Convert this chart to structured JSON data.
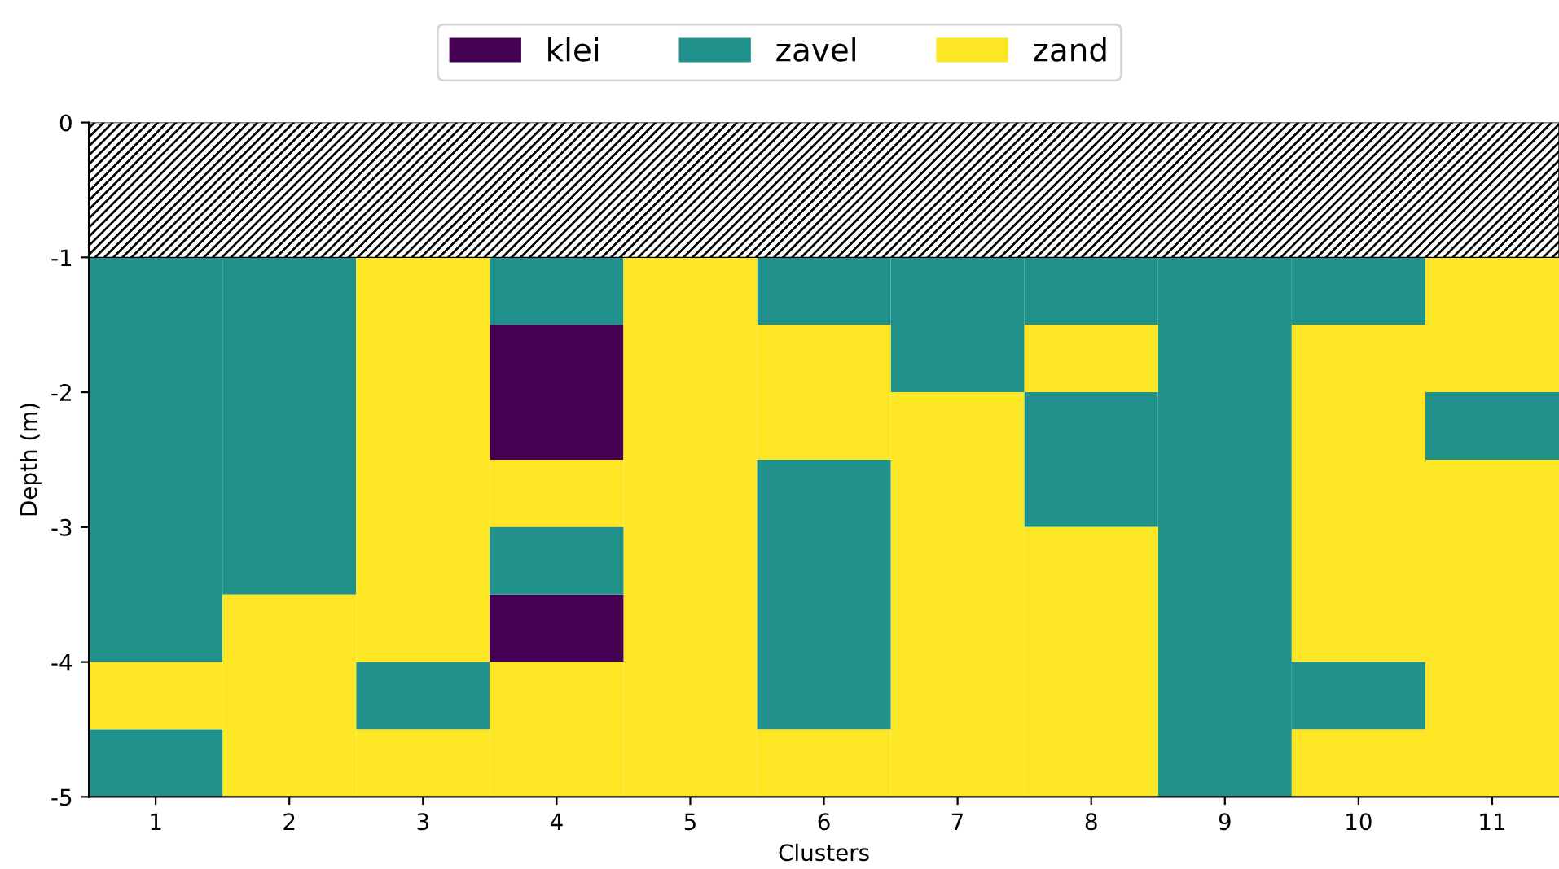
{
  "chart_data": {
    "type": "bar",
    "xlabel": "Clusters",
    "ylabel": "Depth (m)",
    "categories": [
      "1",
      "2",
      "3",
      "4",
      "5",
      "6",
      "7",
      "8",
      "9",
      "10",
      "11"
    ],
    "ylim": [
      -5,
      0
    ],
    "yticks": [
      0,
      -1,
      -2,
      -3,
      -4,
      -5
    ],
    "series": [
      {
        "name": "klei",
        "color": "#440154",
        "base": [
          null,
          null,
          null,
          -1.5,
          null,
          null,
          null,
          null,
          null,
          null,
          null
        ],
        "values": [
          null,
          null,
          null,
          -1,
          null,
          null,
          null,
          null,
          null,
          null,
          null
        ]
      },
      {
        "name": "zavel",
        "color": "#21918c",
        "base": [
          -1,
          -1,
          -4,
          -1,
          null,
          -1,
          -1,
          -1,
          -1,
          -1,
          -2
        ],
        "values": [
          -3,
          -2.5,
          -0.5,
          -0.5,
          null,
          -0.5,
          -1,
          -0.5,
          -4,
          -0.5,
          -0.5
        ]
      },
      {
        "name": "zand",
        "color": "#fde725",
        "base": [
          -4,
          -3.5,
          -1,
          -2.5,
          -1,
          -1.5,
          -2,
          -1.5,
          null,
          -1.5,
          -1
        ],
        "values": [
          -0.5,
          -1.5,
          -3,
          -0.5,
          -4,
          -1,
          -3,
          -0.5,
          null,
          -2.5,
          -1
        ]
      },
      {
        "color": "#440154",
        "base": [
          null,
          null,
          null,
          -3.5,
          null,
          null,
          null,
          null,
          null,
          null,
          null
        ],
        "values": [
          null,
          null,
          null,
          -0.5,
          null,
          null,
          null,
          null,
          null,
          null,
          null
        ]
      },
      {
        "color": "#21918c",
        "base": [
          -4.5,
          null,
          null,
          -3,
          null,
          -2.5,
          null,
          -2,
          null,
          -4,
          null
        ],
        "values": [
          -0.5,
          null,
          null,
          -0.5,
          null,
          -2,
          null,
          -1,
          null,
          -0.5,
          null
        ]
      },
      {
        "color": "#fde725",
        "base": [
          null,
          null,
          -4.5,
          -4,
          null,
          -4.5,
          null,
          -3,
          null,
          -4.5,
          -2.5
        ],
        "values": [
          null,
          null,
          -0.5,
          -1,
          null,
          -0.5,
          null,
          -2,
          null,
          -0.5,
          -2.5
        ]
      }
    ],
    "bands": [
      {
        "axis": "y",
        "from": 0,
        "to": -1,
        "color": "#000000"
      }
    ],
    "legend": "top"
  }
}
